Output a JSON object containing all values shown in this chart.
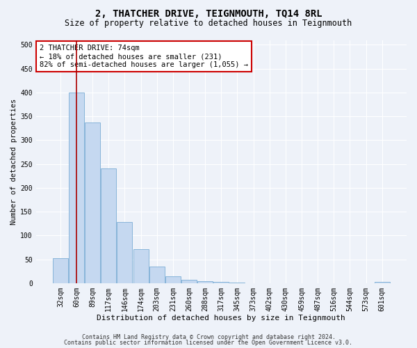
{
  "title": "2, THATCHER DRIVE, TEIGNMOUTH, TQ14 8RL",
  "subtitle": "Size of property relative to detached houses in Teignmouth",
  "xlabel": "Distribution of detached houses by size in Teignmouth",
  "ylabel": "Number of detached properties",
  "bar_labels": [
    "32sqm",
    "60sqm",
    "89sqm",
    "117sqm",
    "146sqm",
    "174sqm",
    "203sqm",
    "231sqm",
    "260sqm",
    "288sqm",
    "317sqm",
    "345sqm",
    "373sqm",
    "402sqm",
    "430sqm",
    "459sqm",
    "487sqm",
    "516sqm",
    "544sqm",
    "573sqm",
    "601sqm"
  ],
  "bar_values": [
    52,
    400,
    337,
    240,
    128,
    72,
    35,
    15,
    7,
    4,
    2,
    1,
    0,
    0,
    0,
    0,
    0,
    0,
    0,
    0,
    2
  ],
  "bar_color": "#c5d8f0",
  "bar_edgecolor": "#7aadd4",
  "vline_x": 1.0,
  "vline_color": "#aa0000",
  "annotation_text": "2 THATCHER DRIVE: 74sqm\n← 18% of detached houses are smaller (231)\n82% of semi-detached houses are larger (1,055) →",
  "annotation_box_facecolor": "#ffffff",
  "annotation_box_edgecolor": "#cc0000",
  "ylim": [
    0,
    510
  ],
  "yticks": [
    0,
    50,
    100,
    150,
    200,
    250,
    300,
    350,
    400,
    450,
    500
  ],
  "footnote1": "Contains HM Land Registry data © Crown copyright and database right 2024.",
  "footnote2": "Contains public sector information licensed under the Open Government Licence v3.0.",
  "bg_color": "#eef2f9",
  "grid_color": "#ffffff",
  "title_fontsize": 10,
  "subtitle_fontsize": 8.5,
  "xlabel_fontsize": 8,
  "ylabel_fontsize": 7.5,
  "tick_fontsize": 7,
  "annotation_fontsize": 7.5,
  "footnote_fontsize": 6
}
